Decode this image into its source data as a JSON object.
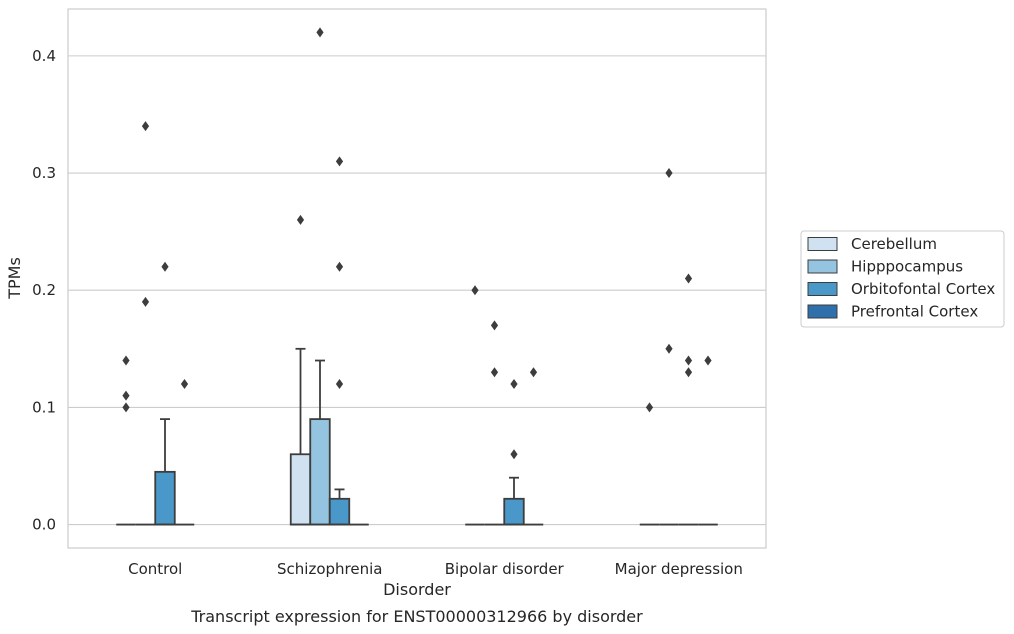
{
  "chart_data": {
    "type": "box",
    "caption": "Transcript expression for ENST00000312966 by disorder",
    "xlabel": "Disorder",
    "ylabel": "TPMs",
    "ylim": [
      -0.02,
      0.44
    ],
    "yticks": [
      0.0,
      0.1,
      0.2,
      0.3,
      0.4
    ],
    "ytick_labels": [
      "0.0",
      "0.1",
      "0.2",
      "0.3",
      "0.4"
    ],
    "grid": "horizontal",
    "legend_position": "right",
    "categories": [
      "Control",
      "Schizophrenia",
      "Bipolar disorder",
      "Major depression"
    ],
    "series": [
      {
        "name": "Cerebellum",
        "color": "#d0e1f2",
        "boxes": [
          {
            "q1": 0,
            "median": 0,
            "q3": 0,
            "whisker_low": 0,
            "whisker_high": 0,
            "outliers": [
              0.14,
              0.11,
              0.1
            ]
          },
          {
            "q1": 0,
            "median": 0,
            "q3": 0.06,
            "whisker_low": 0,
            "whisker_high": 0.15,
            "outliers": [
              0.26
            ]
          },
          {
            "q1": 0,
            "median": 0,
            "q3": 0,
            "whisker_low": 0,
            "whisker_high": 0,
            "outliers": [
              0.2
            ]
          },
          {
            "q1": 0,
            "median": 0,
            "q3": 0,
            "whisker_low": 0,
            "whisker_high": 0,
            "outliers": [
              0.1
            ]
          }
        ]
      },
      {
        "name": "Hipppocampus",
        "color": "#94c4df",
        "boxes": [
          {
            "q1": 0,
            "median": 0,
            "q3": 0,
            "whisker_low": 0,
            "whisker_high": 0,
            "outliers": [
              0.34,
              0.19
            ]
          },
          {
            "q1": 0,
            "median": 0,
            "q3": 0.09,
            "whisker_low": 0,
            "whisker_high": 0.14,
            "outliers": [
              0.42
            ]
          },
          {
            "q1": 0,
            "median": 0,
            "q3": 0,
            "whisker_low": 0,
            "whisker_high": 0,
            "outliers": [
              0.17,
              0.13
            ]
          },
          {
            "q1": 0,
            "median": 0,
            "q3": 0,
            "whisker_low": 0,
            "whisker_high": 0,
            "outliers": [
              0.3,
              0.15
            ]
          }
        ]
      },
      {
        "name": "Orbitofontal Cortex",
        "color": "#4a98c9",
        "boxes": [
          {
            "q1": 0,
            "median": 0,
            "q3": 0.045,
            "whisker_low": 0,
            "whisker_high": 0.09,
            "outliers": [
              0.22
            ]
          },
          {
            "q1": 0,
            "median": 0,
            "q3": 0.022,
            "whisker_low": 0,
            "whisker_high": 0.03,
            "outliers": [
              0.31,
              0.22,
              0.12
            ]
          },
          {
            "q1": 0,
            "median": 0,
            "q3": 0.022,
            "whisker_low": 0,
            "whisker_high": 0.04,
            "outliers": [
              0.12,
              0.06
            ]
          },
          {
            "q1": 0,
            "median": 0,
            "q3": 0,
            "whisker_low": 0,
            "whisker_high": 0,
            "outliers": [
              0.21,
              0.14,
              0.13
            ]
          }
        ]
      },
      {
        "name": "Prefrontal Cortex",
        "color": "#2e6fac",
        "boxes": [
          {
            "q1": 0,
            "median": 0,
            "q3": 0,
            "whisker_low": 0,
            "whisker_high": 0,
            "outliers": [
              0.12
            ]
          },
          {
            "q1": 0,
            "median": 0,
            "q3": 0,
            "whisker_low": 0,
            "whisker_high": 0,
            "outliers": []
          },
          {
            "q1": 0,
            "median": 0,
            "q3": 0,
            "whisker_low": 0,
            "whisker_high": 0,
            "outliers": [
              0.13
            ]
          },
          {
            "q1": 0,
            "median": 0,
            "q3": 0,
            "whisker_low": 0,
            "whisker_high": 0,
            "outliers": [
              0.14
            ]
          }
        ]
      }
    ]
  }
}
